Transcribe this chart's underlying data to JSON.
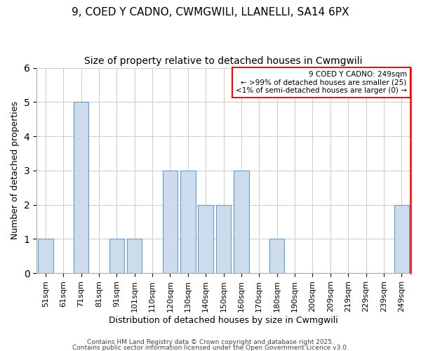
{
  "title1": "9, COED Y CADNO, CWMGWILI, LLANELLI, SA14 6PX",
  "title2": "Size of property relative to detached houses in Cwmgwili",
  "xlabel": "Distribution of detached houses by size in Cwmgwili",
  "ylabel": "Number of detached properties",
  "categories": [
    "51sqm",
    "61sqm",
    "71sqm",
    "81sqm",
    "91sqm",
    "101sqm",
    "110sqm",
    "120sqm",
    "130sqm",
    "140sqm",
    "150sqm",
    "160sqm",
    "170sqm",
    "180sqm",
    "190sqm",
    "200sqm",
    "209sqm",
    "219sqm",
    "229sqm",
    "239sqm",
    "249sqm"
  ],
  "values": [
    1,
    0,
    5,
    0,
    1,
    1,
    0,
    3,
    3,
    2,
    2,
    3,
    0,
    1,
    0,
    0,
    0,
    0,
    0,
    0,
    2
  ],
  "bar_color": "#ccdcec",
  "bar_edge_color": "#6699cc",
  "highlight_color": "red",
  "ylim": [
    0,
    6
  ],
  "annotation_title": "9 COED Y CADNO: 249sqm",
  "annotation_line1": "← >99% of detached houses are smaller (25)",
  "annotation_line2": "<1% of semi-detached houses are larger (0) →",
  "footer1": "Contains HM Land Registry data © Crown copyright and database right 2025.",
  "footer2": "Contains public sector information licensed under the Open Government Licence v3.0.",
  "background_color": "#ffffff",
  "plot_bg_color": "#ffffff",
  "grid_color": "#cccccc",
  "title_fontsize": 11,
  "subtitle_fontsize": 10,
  "tick_fontsize": 8,
  "ylabel_fontsize": 9,
  "xlabel_fontsize": 9,
  "footer_fontsize": 6.5,
  "ann_fontsize": 7.5
}
